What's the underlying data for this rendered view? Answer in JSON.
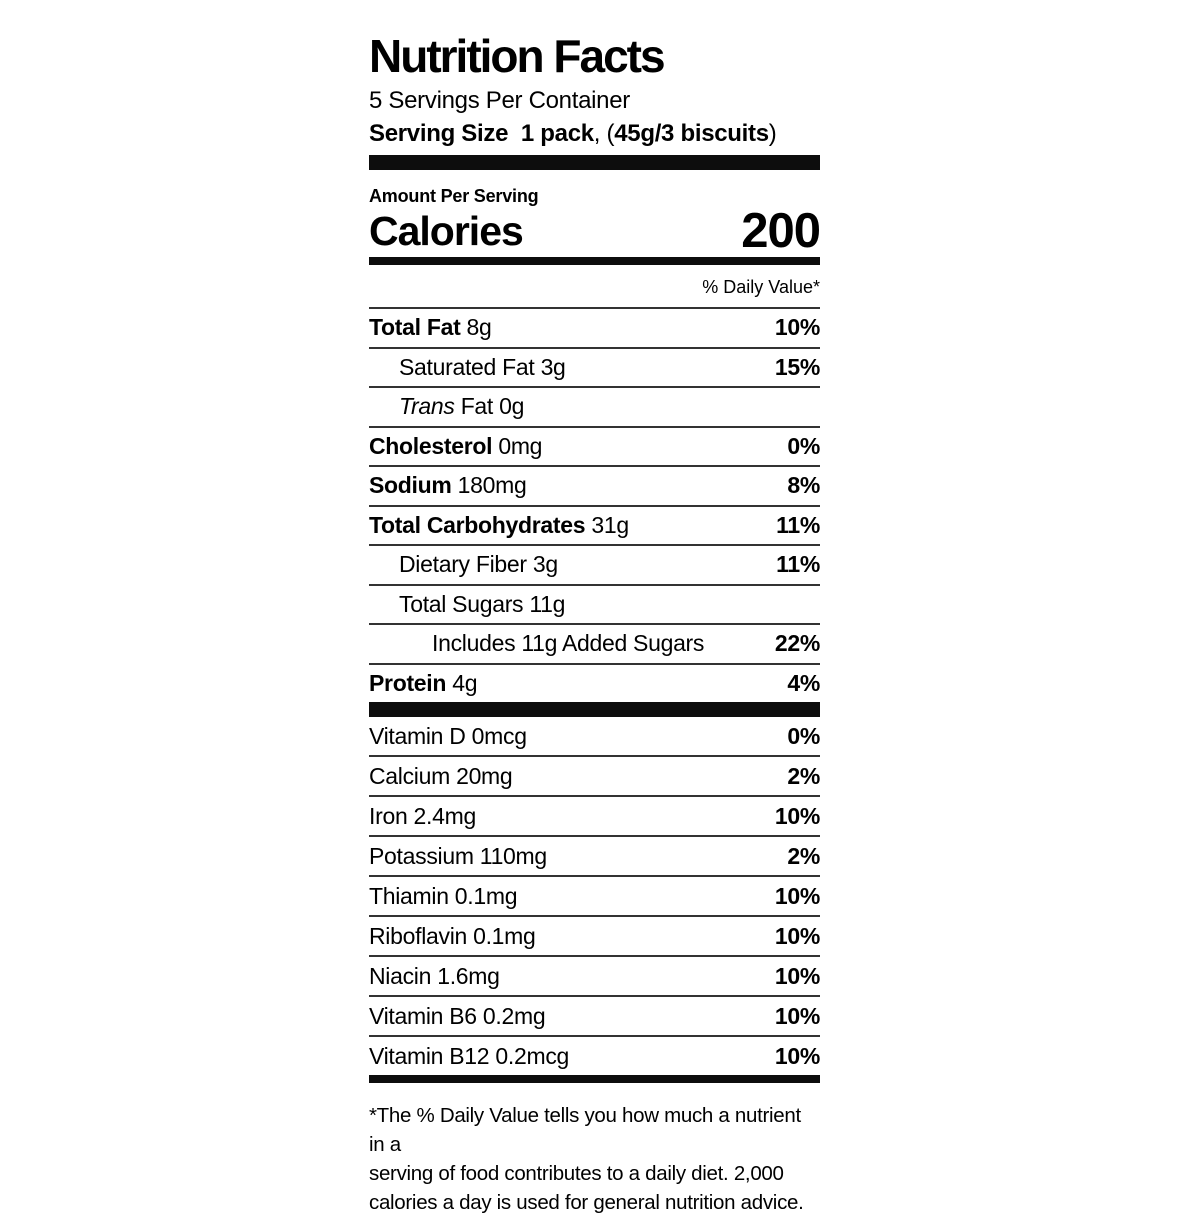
{
  "colors": {
    "text": "#000000",
    "bar": "#0d0d0d",
    "hairline": "#333333",
    "background": "#ffffff"
  },
  "label": {
    "title": "Nutrition Facts",
    "servings_per_container": "5 Servings Per Container",
    "serving_size": {
      "label": "Serving Size",
      "value": "1 pack",
      "separator": ", (",
      "detail": "45g/3 biscuits",
      "close": ")"
    },
    "amount_per_serving": "Amount Per Serving",
    "calories_label": "Calories",
    "calories_value": "200",
    "daily_value_header": "% Daily Value*"
  },
  "nutrients": [
    {
      "name": "Total Fat",
      "amount": "8g",
      "dv": "10%",
      "bold": true,
      "indent": 0
    },
    {
      "name": "Saturated Fat",
      "amount": "3g",
      "dv": "15%",
      "bold": false,
      "indent": 1
    },
    {
      "name_italic": "Trans",
      "name": "Fat",
      "amount": "0g",
      "dv": "",
      "bold": false,
      "indent": 1
    },
    {
      "name": "Cholesterol",
      "amount": "0mg",
      "dv": "0%",
      "bold": true,
      "indent": 0
    },
    {
      "name": "Sodium",
      "amount": "180mg",
      "dv": "8%",
      "bold": true,
      "indent": 0
    },
    {
      "name": "Total Carbohydrates",
      "amount": "31g",
      "dv": "11%",
      "bold": true,
      "indent": 0
    },
    {
      "name": "Dietary Fiber",
      "amount": "3g",
      "dv": "11%",
      "bold": false,
      "indent": 1
    },
    {
      "name": "Total Sugars",
      "amount": "11g",
      "dv": "",
      "bold": false,
      "indent": 1
    },
    {
      "name": "Includes 11g Added Sugars",
      "amount": "",
      "dv": "22%",
      "bold": false,
      "indent": 2
    },
    {
      "name": "Protein",
      "amount": "4g",
      "dv": "4%",
      "bold": true,
      "indent": 0
    }
  ],
  "vitamins": [
    {
      "name": "Vitamin D",
      "amount": "0mcg",
      "dv": "0%"
    },
    {
      "name": "Calcium",
      "amount": "20mg",
      "dv": "2%"
    },
    {
      "name": "Iron",
      "amount": "2.4mg",
      "dv": "10%"
    },
    {
      "name": "Potassium",
      "amount": "110mg",
      "dv": "2%"
    },
    {
      "name": "Thiamin",
      "amount": "0.1mg",
      "dv": "10%"
    },
    {
      "name": "Riboflavin",
      "amount": "0.1mg",
      "dv": "10%"
    },
    {
      "name": "Niacin",
      "amount": "1.6mg",
      "dv": "10%"
    },
    {
      "name": "Vitamin B6",
      "amount": "0.2mg",
      "dv": "10%"
    },
    {
      "name": "Vitamin B12",
      "amount": "0.2mcg",
      "dv": "10%"
    }
  ],
  "footnote_lines": [
    "*The % Daily Value tells you how much a nutrient in a",
    "serving of food contributes to a daily diet. 2,000",
    "calories a day is used for general nutrition advice."
  ]
}
